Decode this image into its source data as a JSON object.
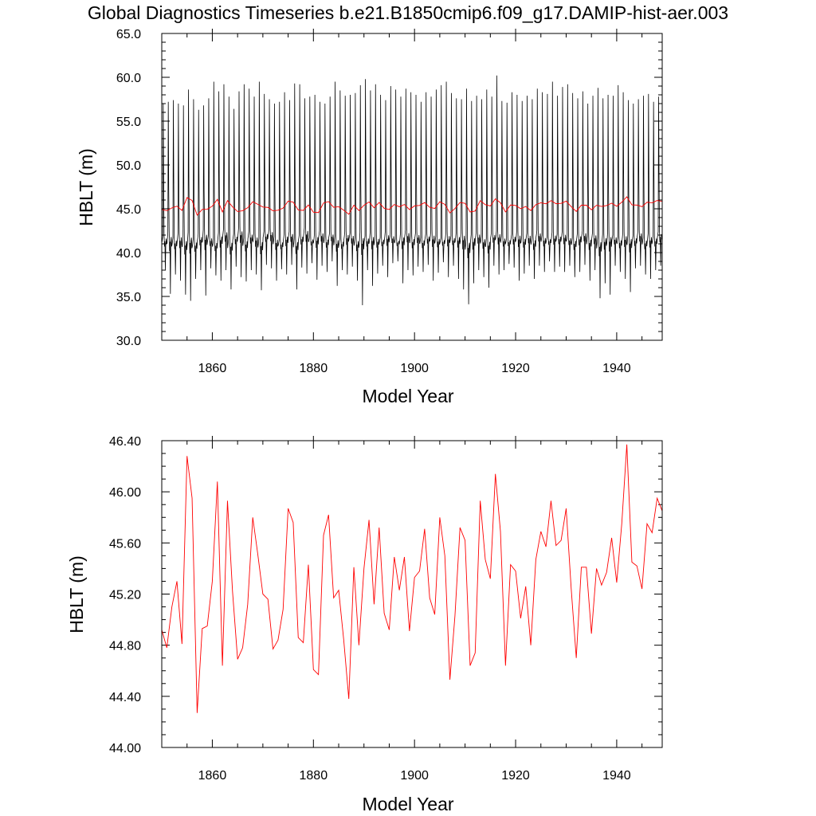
{
  "title": "Global Diagnostics Timeseries b.e21.B1850cmip6.f09_g17.DAMIP-hist-aer.003",
  "colors": {
    "monthly": "#000000",
    "annual": "#ff0000"
  },
  "chart_data": [
    {
      "type": "line",
      "xlabel": "Model Year",
      "ylabel": "HBLT (m)",
      "xlim": [
        1850,
        1949
      ],
      "ylim": [
        30,
        65
      ],
      "x_ticks": [
        1860,
        1880,
        1900,
        1920,
        1940
      ],
      "x_tick_labels": [
        "1860",
        "1880",
        "1900",
        "1920",
        "1940"
      ],
      "y_ticks": [
        30,
        35,
        40,
        45,
        50,
        55,
        60,
        65
      ],
      "y_tick_labels": [
        "30.0",
        "35.0",
        "40.0",
        "45.0",
        "50.0",
        "55.0",
        "60.0",
        "65.0"
      ],
      "series": [
        {
          "kind": "monthly",
          "color": "#000000",
          "x_start": 1850.04,
          "x_step": 0.0833333,
          "annual_max": [
            57.0,
            57.2,
            57.4,
            57.0,
            56.8,
            58.6,
            57.5,
            56.3,
            56.8,
            57.6,
            59.5,
            58.4,
            59.2,
            57.8,
            56.4,
            58.4,
            59.2,
            58.7,
            57.8,
            59.5,
            58.1,
            57.5,
            57.0,
            57.2,
            58.3,
            57.4,
            59.3,
            59.2,
            57.6,
            57.8,
            58.0,
            57.2,
            57.0,
            57.8,
            59.5,
            58.5,
            57.9,
            58.0,
            58.2,
            59.1,
            59.8,
            58.5,
            59.2,
            58.0,
            57.4,
            59.0,
            58.6,
            57.8,
            58.7,
            58.3,
            58.0,
            57.2,
            58.3,
            57.8,
            58.6,
            59.1,
            59.5,
            58.2,
            57.6,
            57.5,
            58.7,
            57.3,
            57.9,
            57.5,
            58.6,
            57.8,
            60.2,
            57.3,
            57.1,
            58.3,
            58.0,
            57.3,
            57.9,
            57.5,
            58.7,
            58.3,
            58.1,
            59.5,
            57.9,
            58.9,
            59.2,
            58.2,
            57.6,
            58.4,
            57.0,
            57.9,
            58.8,
            57.6,
            58.0,
            57.9,
            59.1,
            58.3,
            57.4,
            57.0,
            57.5,
            57.9,
            58.1,
            57.2,
            57.8,
            58.0
          ],
          "annual_min": [
            38.0,
            35.3,
            37.5,
            36.8,
            35.2,
            34.5,
            37.0,
            38.0,
            35.1,
            38.2,
            37.4,
            36.8,
            38.0,
            35.8,
            38.4,
            37.2,
            36.7,
            38.0,
            37.5,
            35.7,
            38.6,
            38.2,
            36.8,
            38.1,
            37.5,
            38.6,
            35.8,
            38.3,
            37.6,
            38.8,
            36.9,
            38.5,
            37.8,
            39.0,
            36.2,
            38.0,
            37.5,
            38.4,
            36.8,
            34.0,
            38.0,
            36.2,
            37.6,
            38.5,
            37.2,
            38.8,
            39.0,
            36.5,
            38.0,
            37.4,
            38.4,
            37.8,
            38.6,
            36.8,
            37.7,
            38.9,
            37.2,
            38.5,
            37.0,
            35.8,
            34.1,
            36.5,
            38.0,
            37.2,
            36.0,
            38.5,
            37.5,
            38.0,
            38.7,
            38.3,
            36.8,
            37.6,
            38.5,
            37.0,
            38.5,
            37.8,
            39.0,
            37.8,
            38.4,
            37.8,
            38.5,
            37.2,
            37.8,
            38.6,
            36.8,
            38.0,
            34.8,
            36.5,
            35.2,
            38.5,
            37.8,
            37.0,
            35.5,
            38.2,
            38.5,
            37.5,
            37.0,
            38.0,
            38.5,
            39.5
          ],
          "annual_mid": [
            42.0,
            42.5,
            41.8,
            42.3,
            42.0,
            42.5,
            41.6,
            42.2,
            42.8,
            42.0,
            41.5,
            42.4,
            42.8,
            41.7,
            42.2,
            43.0,
            41.8,
            42.5,
            42.2,
            41.8,
            42.5,
            42.8,
            42.0,
            41.5,
            42.3,
            42.5,
            41.8,
            42.2,
            43.0,
            41.8,
            42.3,
            42.6,
            41.9,
            42.4,
            42.0,
            41.6,
            42.5,
            42.3,
            41.8,
            42.5,
            42.0,
            42.4,
            42.0,
            41.8,
            42.5,
            42.2,
            41.6,
            42.3,
            42.7,
            42.0,
            42.4,
            41.8,
            42.2,
            42.5,
            42.0,
            41.7,
            42.4,
            42.0,
            42.3,
            42.6,
            41.9,
            42.2,
            42.5,
            42.0,
            41.8,
            42.4,
            42.6,
            42.0,
            41.7,
            42.2,
            42.5,
            42.0,
            42.3,
            41.9,
            42.6,
            42.1,
            41.8,
            42.4,
            42.2,
            42.5,
            42.0,
            41.8,
            42.3,
            42.6,
            42.0,
            42.4,
            41.9,
            42.2,
            42.5,
            42.1,
            41.8,
            42.4,
            42.2,
            42.0,
            42.6,
            41.8,
            42.3,
            42.0,
            42.5,
            43.0
          ]
        },
        {
          "kind": "annual",
          "color": "#ff0000",
          "x": [
            1850,
            1851,
            1852,
            1853,
            1854,
            1855,
            1856,
            1857,
            1858,
            1859,
            1860,
            1861,
            1862,
            1863,
            1864,
            1865,
            1866,
            1867,
            1868,
            1869,
            1870,
            1871,
            1872,
            1873,
            1874,
            1875,
            1876,
            1877,
            1878,
            1879,
            1880,
            1881,
            1882,
            1883,
            1884,
            1885,
            1886,
            1887,
            1888,
            1889,
            1890,
            1891,
            1892,
            1893,
            1894,
            1895,
            1896,
            1897,
            1898,
            1899,
            1900,
            1901,
            1902,
            1903,
            1904,
            1905,
            1906,
            1907,
            1908,
            1909,
            1910,
            1911,
            1912,
            1913,
            1914,
            1915,
            1916,
            1917,
            1918,
            1919,
            1920,
            1921,
            1922,
            1923,
            1924,
            1925,
            1926,
            1927,
            1928,
            1929,
            1930,
            1931,
            1932,
            1933,
            1934,
            1935,
            1936,
            1937,
            1938,
            1939,
            1940,
            1941,
            1942,
            1943,
            1944,
            1945,
            1946,
            1947,
            1948,
            1949
          ],
          "values": [
            44.92,
            44.78,
            45.1,
            45.3,
            44.81,
            46.28,
            45.95,
            44.27,
            44.93,
            44.95,
            45.3,
            46.08,
            44.64,
            45.93,
            45.22,
            44.69,
            44.78,
            45.12,
            45.8,
            45.51,
            45.2,
            45.16,
            44.77,
            44.84,
            45.08,
            45.87,
            45.76,
            44.86,
            44.82,
            45.43,
            44.61,
            44.57,
            45.66,
            45.82,
            45.17,
            45.23,
            44.84,
            44.38,
            45.41,
            44.8,
            45.4,
            45.78,
            45.12,
            45.72,
            45.05,
            44.92,
            45.49,
            45.23,
            45.49,
            44.91,
            45.33,
            45.38,
            45.71,
            45.17,
            45.04,
            45.8,
            45.5,
            44.53,
            45.03,
            45.72,
            45.62,
            44.64,
            44.74,
            45.93,
            45.47,
            45.32,
            46.14,
            45.69,
            44.64,
            45.43,
            45.38,
            45.01,
            45.26,
            44.8,
            45.47,
            45.69,
            45.57,
            45.93,
            45.58,
            45.62,
            45.87,
            45.24,
            44.7,
            45.41,
            45.41,
            44.89,
            45.4,
            45.27,
            45.37,
            45.64,
            45.29,
            45.75,
            46.37,
            45.45,
            45.42,
            45.24,
            45.75,
            45.68,
            45.95,
            45.85
          ]
        }
      ]
    },
    {
      "type": "line",
      "xlabel": "Model Year",
      "ylabel": "HBLT (m)",
      "xlim": [
        1850,
        1949
      ],
      "ylim": [
        44.0,
        46.4
      ],
      "x_ticks": [
        1860,
        1880,
        1900,
        1920,
        1940
      ],
      "x_tick_labels": [
        "1860",
        "1880",
        "1900",
        "1920",
        "1940"
      ],
      "y_ticks": [
        44.0,
        44.4,
        44.8,
        45.2,
        45.6,
        46.0,
        46.4
      ],
      "y_tick_labels": [
        "44.00",
        "44.40",
        "44.80",
        "45.20",
        "45.60",
        "46.00",
        "46.40"
      ],
      "series": [
        {
          "kind": "annual",
          "color": "#ff0000",
          "source": "chart_data.0.series.1"
        }
      ]
    }
  ]
}
